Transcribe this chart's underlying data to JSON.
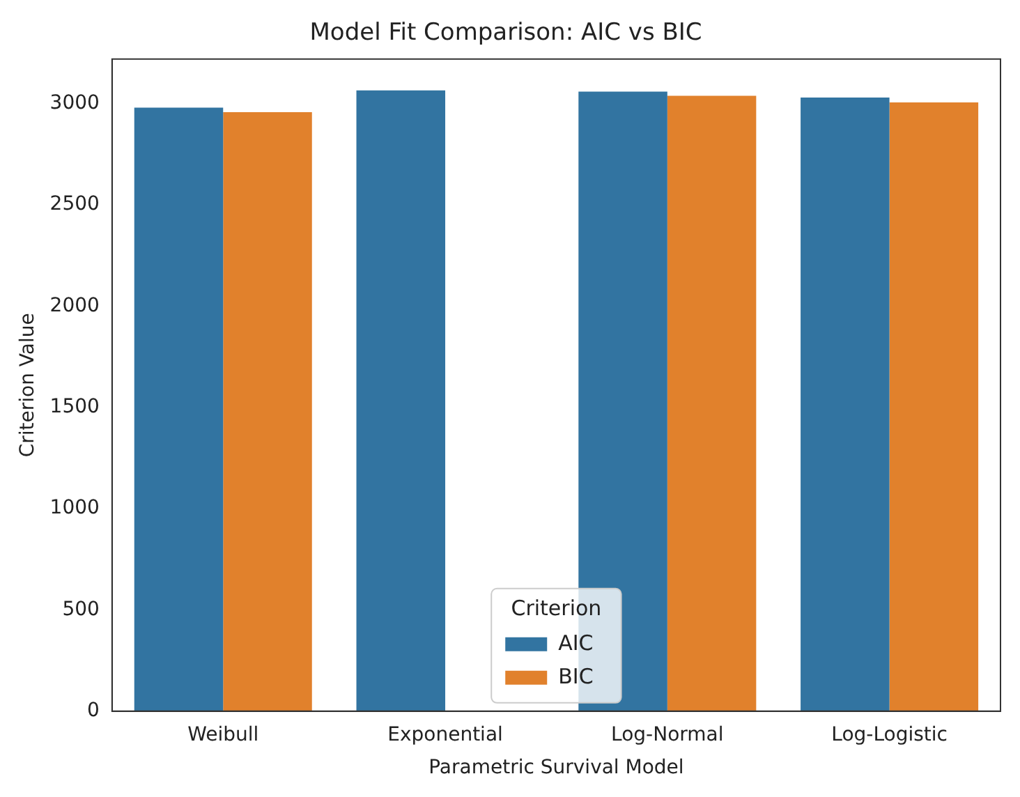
{
  "chart_data": {
    "type": "bar",
    "title": "Model Fit Comparison: AIC vs BIC",
    "xlabel": "Parametric Survival Model",
    "ylabel": "Criterion Value",
    "legend_title": "Criterion",
    "categories": [
      "Weibull",
      "Exponential",
      "Log-Normal",
      "Log-Logistic"
    ],
    "series": [
      {
        "name": "AIC",
        "color": "#3274a1",
        "values": [
          2980,
          3065,
          3059,
          3030
        ]
      },
      {
        "name": "BIC",
        "color": "#e1812c",
        "values": [
          2958,
          null,
          3039,
          3006
        ]
      }
    ],
    "ylim": [
      0,
      3220
    ],
    "yticks": [
      0,
      500,
      1000,
      1500,
      2000,
      2500,
      3000
    ],
    "grid": false,
    "legend": "bottom"
  }
}
